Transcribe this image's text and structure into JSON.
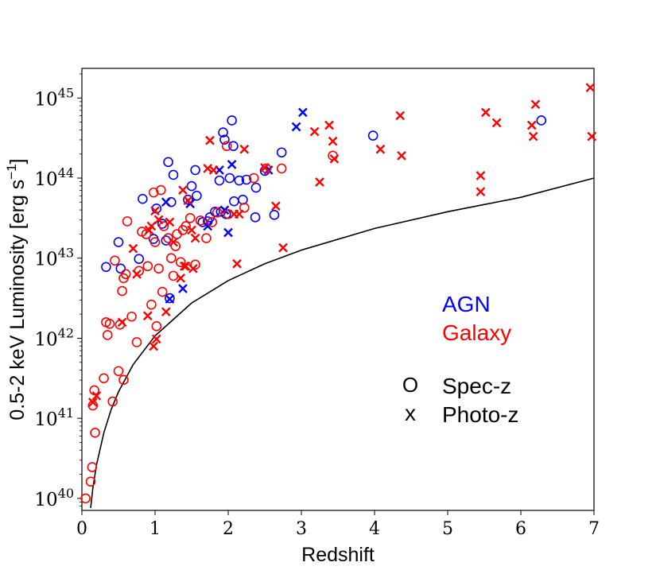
{
  "chart_data": {
    "type": "scatter",
    "title": "",
    "xlabel": "Redshift",
    "ylabel": "0.5-2 keV Luminosity [erg s",
    "ylabel_sup": "−1",
    "ylabel_close": "]",
    "xlim": [
      0,
      7
    ],
    "ylim_log10": [
      39.85,
      45.37
    ],
    "yscale": "log",
    "x_ticks": [
      0,
      1,
      2,
      3,
      4,
      5,
      6,
      7
    ],
    "x_tick_labels": [
      "0",
      "1",
      "2",
      "3",
      "4",
      "5",
      "6",
      "7"
    ],
    "y_ticks_exp": [
      40,
      41,
      42,
      43,
      44,
      45
    ],
    "y_tick_base": "10",
    "y_tick_exponents": [
      "40",
      "41",
      "42",
      "43",
      "44",
      "45"
    ],
    "legend": {
      "agn_label": "AGN",
      "galaxy_label": "Galaxy",
      "specz_symbol": "O",
      "specz_label": "Spec-z",
      "photoz_symbol": "x",
      "photoz_label": "Photo-z"
    },
    "colors": {
      "agn": "#0000ff",
      "galaxy": "#ff0000",
      "curve": "#000000"
    },
    "flux_limit_curve": {
      "x": [
        0.12,
        0.15,
        0.2,
        0.3,
        0.4,
        0.5,
        0.7,
        1.0,
        1.5,
        2.0,
        2.5,
        3.0,
        4.0,
        5.0,
        6.0,
        7.0
      ],
      "log10_y": [
        39.88,
        40.13,
        40.42,
        40.82,
        41.11,
        41.33,
        41.67,
        42.03,
        42.44,
        42.72,
        42.93,
        43.1,
        43.37,
        43.58,
        43.76,
        44.0
      ]
    },
    "series": [
      {
        "name": "AGN Spec-z",
        "color": "#0000ff",
        "marker": "circle",
        "x": [
          0.33,
          0.5,
          0.53,
          0.78,
          0.83,
          0.98,
          1.02,
          1.1,
          1.15,
          1.18,
          1.2,
          1.22,
          1.25,
          1.45,
          1.5,
          1.55,
          1.57,
          1.65,
          1.72,
          1.75,
          1.82,
          1.88,
          1.9,
          1.93,
          1.95,
          1.97,
          2.02,
          2.05,
          2.07,
          2.08,
          2.15,
          2.2,
          2.25,
          2.37,
          2.38,
          2.5,
          2.63,
          2.73,
          3.98,
          6.28
        ],
        "log10_y": [
          42.89,
          43.2,
          42.87,
          42.99,
          43.74,
          43.24,
          43.62,
          43.43,
          43.22,
          44.2,
          42.5,
          43.7,
          44.04,
          43.73,
          43.9,
          44.1,
          43.78,
          43.45,
          43.46,
          43.51,
          43.58,
          43.97,
          43.58,
          44.57,
          44.48,
          43.55,
          44.0,
          44.72,
          44.4,
          43.71,
          43.97,
          43.73,
          43.98,
          43.51,
          43.88,
          44.09,
          43.54,
          44.32,
          44.53,
          44.72
        ]
      },
      {
        "name": "AGN Photo-z",
        "color": "#0000ff",
        "marker": "x",
        "x": [
          1.15,
          1.2,
          1.38,
          1.48,
          1.72,
          1.88,
          1.95,
          2.0,
          2.05,
          2.55,
          2.93,
          3.02
        ],
        "log10_y": [
          43.7,
          42.49,
          42.62,
          43.68,
          43.4,
          44.1,
          43.6,
          43.32,
          44.17,
          44.1,
          44.64,
          44.82
        ]
      },
      {
        "name": "Galaxy Spec-z",
        "color": "#ff0000",
        "marker": "circle",
        "x": [
          0.05,
          0.12,
          0.14,
          0.15,
          0.17,
          0.18,
          0.3,
          0.33,
          0.35,
          0.38,
          0.42,
          0.45,
          0.5,
          0.52,
          0.55,
          0.57,
          0.57,
          0.6,
          0.62,
          0.68,
          0.75,
          0.78,
          0.82,
          0.88,
          0.9,
          0.95,
          0.98,
          1.0,
          1.02,
          1.05,
          1.08,
          1.1,
          1.12,
          1.18,
          1.22,
          1.25,
          1.28,
          1.3,
          1.35,
          1.38,
          1.42,
          1.48,
          1.55,
          1.62,
          1.7,
          1.78,
          1.85,
          1.98,
          2.0,
          2.22,
          2.35,
          2.52,
          2.73,
          3.43
        ],
        "log10_y": [
          40.0,
          40.21,
          40.39,
          41.16,
          41.35,
          40.82,
          41.5,
          42.2,
          42.04,
          42.18,
          41.21,
          42.97,
          41.59,
          42.17,
          42.59,
          42.75,
          41.48,
          42.8,
          43.46,
          42.27,
          41.95,
          42.84,
          43.33,
          43.3,
          42.9,
          42.42,
          43.82,
          43.2,
          42.15,
          42.87,
          43.85,
          42.58,
          43.4,
          43.25,
          43.0,
          42.78,
          43.15,
          43.3,
          42.95,
          43.35,
          43.4,
          43.5,
          42.92,
          43.47,
          43.25,
          43.45,
          43.57,
          44.4,
          43.55,
          43.63,
          44.0,
          44.12,
          44.12,
          44.28
        ]
      },
      {
        "name": "Galaxy Photo-z",
        "color": "#ff0000",
        "marker": "x",
        "x": [
          0.15,
          0.2,
          0.55,
          0.7,
          0.75,
          0.9,
          0.92,
          0.95,
          0.98,
          1.0,
          1.02,
          1.05,
          1.15,
          1.2,
          1.25,
          1.35,
          1.38,
          1.4,
          1.42,
          1.45,
          1.5,
          1.52,
          1.55,
          1.72,
          1.75,
          1.8,
          2.08,
          2.12,
          2.15,
          2.22,
          2.5,
          2.65,
          2.75,
          3.18,
          3.25,
          3.38,
          3.43,
          3.45,
          4.08,
          4.35,
          4.37,
          5.45,
          5.45,
          5.52,
          5.67,
          6.15,
          6.17,
          6.2,
          6.95,
          6.97
        ],
        "log10_y": [
          41.2,
          41.28,
          42.2,
          43.12,
          42.8,
          42.28,
          43.35,
          43.4,
          41.9,
          43.59,
          41.99,
          43.48,
          42.33,
          43.45,
          43.2,
          42.75,
          43.85,
          42.9,
          42.9,
          43.72,
          43.35,
          42.87,
          43.25,
          44.12,
          44.47,
          44.1,
          43.55,
          42.93,
          43.55,
          44.36,
          44.13,
          43.65,
          43.13,
          44.58,
          43.95,
          44.66,
          44.46,
          44.24,
          44.36,
          44.78,
          44.28,
          44.03,
          43.83,
          44.82,
          44.69,
          44.66,
          44.52,
          44.92,
          45.13,
          44.52
        ]
      }
    ]
  }
}
